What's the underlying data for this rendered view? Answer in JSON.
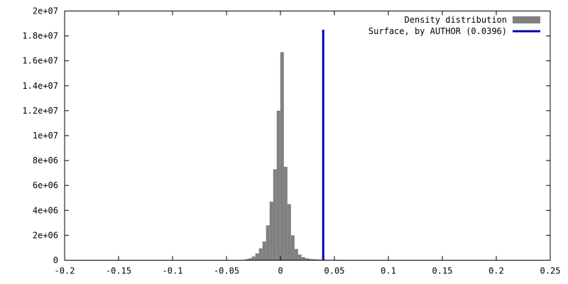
{
  "chart_data": {
    "type": "bar",
    "x_range": [
      -0.2,
      0.25
    ],
    "y_range": [
      0,
      20000000
    ],
    "x_ticks": [
      "-0.2",
      "-0.15",
      "-0.1",
      "-0.05",
      "0",
      "0.05",
      "0.1",
      "0.15",
      "0.2",
      "0.25"
    ],
    "x_tick_values": [
      -0.2,
      -0.15,
      -0.1,
      -0.05,
      0,
      0.05,
      0.1,
      0.15,
      0.2,
      0.25
    ],
    "y_ticks": [
      "0",
      "2e+06",
      "4e+06",
      "6e+06",
      "8e+06",
      "1e+07",
      "1.2e+07",
      "1.4e+07",
      "1.6e+07",
      "1.8e+07",
      "2e+07"
    ],
    "y_tick_values": [
      0,
      2000000,
      4000000,
      6000000,
      8000000,
      10000000,
      12000000,
      14000000,
      16000000,
      18000000,
      20000000
    ],
    "bin_width": 0.0033,
    "histogram": {
      "name": "Density distribution",
      "color": "#808080",
      "x": [
        -0.0315,
        -0.0282,
        -0.0249,
        -0.0216,
        -0.0183,
        -0.015,
        -0.0117,
        -0.0084,
        -0.0051,
        -0.0018,
        0.0015,
        0.0048,
        0.0081,
        0.0114,
        0.0147,
        0.018,
        0.0213,
        0.0246,
        0.0279,
        0.0312,
        0.0345,
        0.0378,
        0.0411,
        0.0444,
        0.0477,
        0.051,
        0.0543,
        0.0576,
        0.0609
      ],
      "values": [
        80000,
        150000,
        300000,
        550000,
        950000,
        1500000,
        2800000,
        4700000,
        7300000,
        12000000,
        16700000,
        7500000,
        4500000,
        2000000,
        900000,
        450000,
        250000,
        150000,
        100000,
        80000,
        60000,
        50000,
        45000,
        40000,
        38000,
        35000,
        30000,
        25000,
        20000
      ]
    },
    "reference_line": {
      "name": "Surface, by AUTHOR (0.0396)",
      "x": 0.0396,
      "y_top": 18500000,
      "color": "#0000bb"
    },
    "legend": {
      "position": "top-right",
      "entries": [
        "Density distribution",
        "Surface, by AUTHOR (0.0396)"
      ]
    },
    "grid": false
  }
}
